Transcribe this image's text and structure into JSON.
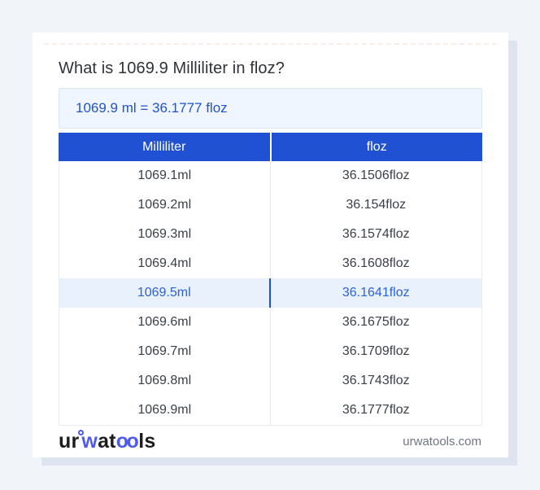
{
  "page": {
    "title": "What is 1069.9 Milliliter in floz?",
    "result_text": "1069.9 ml = 36.1777 floz",
    "site_domain": "urwatools.com"
  },
  "logo": {
    "part_ur": "ur",
    "part_w": "w",
    "part_at": "at",
    "part_oo": "oo",
    "part_ls": "ls",
    "full_name": "urwatools"
  },
  "table": {
    "headers": [
      "Milliliter",
      "floz"
    ],
    "highlighted_row_index": 4,
    "rows": [
      {
        "ml": "1069.1ml",
        "floz": "36.1506floz"
      },
      {
        "ml": "1069.2ml",
        "floz": "36.154floz"
      },
      {
        "ml": "1069.3ml",
        "floz": "36.1574floz"
      },
      {
        "ml": "1069.4ml",
        "floz": "36.1608floz"
      },
      {
        "ml": "1069.5ml",
        "floz": "36.1641floz"
      },
      {
        "ml": "1069.6ml",
        "floz": "36.1675floz"
      },
      {
        "ml": "1069.7ml",
        "floz": "36.1709floz"
      },
      {
        "ml": "1069.8ml",
        "floz": "36.1743floz"
      },
      {
        "ml": "1069.9ml",
        "floz": "36.1777floz"
      }
    ]
  },
  "colors": {
    "accent_blue": "#2151d3",
    "result_text_blue": "#2153c9",
    "result_box_bg": "#eff6ff",
    "highlight_row_bg": "#e9f1fc",
    "highlight_text_blue": "#2b62d9",
    "page_bg": "#f1f4f9",
    "card_shadow": "#dde3ef",
    "logo_blue": "#4f5bf0"
  }
}
